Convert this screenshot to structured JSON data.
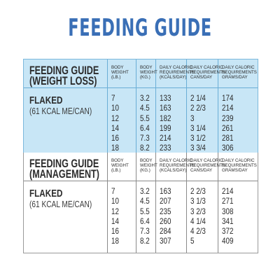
{
  "title": "FEEDING GUIDE",
  "columns": [
    "BODY WEIGHT (LB.)",
    "BODY WEIGHT (KG.)",
    "DAILY CALORIC REQUIREMENTS (KCALS/DAY)",
    "DAILY CALORIC REQUIREMENTS CANS/DAY",
    "DAILY CALORIC REQUIREMENTS GRAMS/DAY"
  ],
  "sections": [
    {
      "heading": "FEEDING GUIDE\n(WEIGHT LOSS)",
      "product": "FLAKED",
      "product_desc": "(61 KCAL ME/CAN)",
      "rows": [
        [
          "7",
          "3.2",
          "133",
          "2 1/4",
          "174"
        ],
        [
          "10",
          "4.5",
          "163",
          "2 2/3",
          "214"
        ],
        [
          "12",
          "5.5",
          "182",
          "3",
          "239"
        ],
        [
          "14",
          "6.4",
          "199",
          "3 1/4",
          "261"
        ],
        [
          "16",
          "7.3",
          "214",
          "3 1/2",
          "281"
        ],
        [
          "18",
          "8.2",
          "233",
          "3 3/4",
          "306"
        ]
      ]
    },
    {
      "heading": "FEEDING GUIDE\n(MANAGEMENT)",
      "product": "FLAKED",
      "product_desc": "(61 KCAL ME/CAN)",
      "rows": [
        [
          "7",
          "3.2",
          "163",
          "2 2/3",
          "214"
        ],
        [
          "10",
          "4.5",
          "207",
          "3 1/3",
          "271"
        ],
        [
          "12",
          "5.5",
          "235",
          "3 2/3",
          "308"
        ],
        [
          "14",
          "6.4",
          "260",
          "4 1/4",
          "341"
        ],
        [
          "16",
          "7.3",
          "284",
          "4 2/3",
          "372"
        ],
        [
          "18",
          "8.2",
          "307",
          "5",
          "409"
        ]
      ]
    }
  ],
  "colors": {
    "title": "#3a6fb6",
    "weight_loss_bg": "#c8e6f6"
  }
}
